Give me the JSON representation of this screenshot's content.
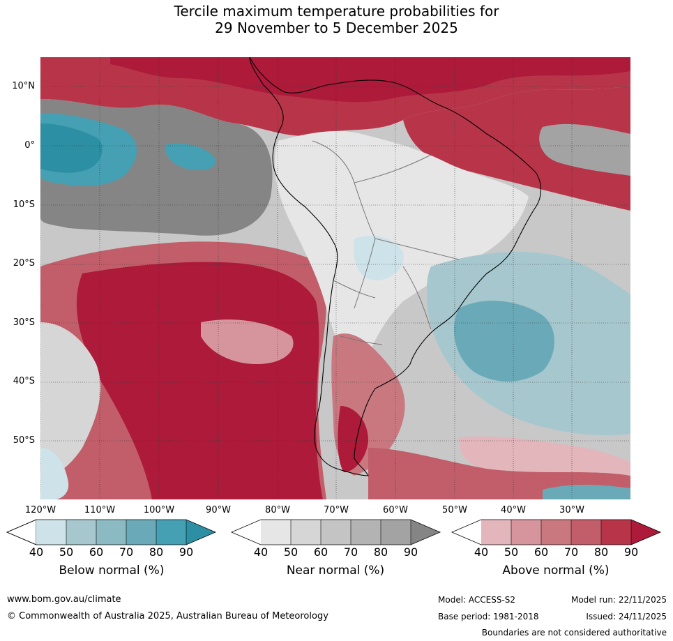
{
  "title": {
    "line1": "Tercile maximum temperature probabilities for",
    "line2": "29 November to 5 December 2025"
  },
  "axes": {
    "lat_labels": [
      "10°N",
      "0°",
      "10°S",
      "20°S",
      "30°S",
      "40°S",
      "50°S"
    ],
    "lon_labels": [
      "120°W",
      "110°W",
      "100°W",
      "90°W",
      "80°W",
      "70°W",
      "60°W",
      "50°W",
      "40°W",
      "30°W"
    ]
  },
  "legend": {
    "ticks": [
      "40",
      "50",
      "60",
      "70",
      "80",
      "90"
    ],
    "below": {
      "title": "Below normal (%)",
      "colors": [
        "#ffffff",
        "#cde3e9",
        "#a6c7ce",
        "#8cbac3",
        "#6aaab8",
        "#45a0b3",
        "#2d8fa3"
      ]
    },
    "near": {
      "title": "Near normal (%)",
      "colors": [
        "#ffffff",
        "#e6e6e6",
        "#d6d6d6",
        "#c4c4c4",
        "#b3b3b3",
        "#a3a3a3",
        "#858585"
      ]
    },
    "above": {
      "title": "Above normal (%)",
      "colors": [
        "#ffffff",
        "#e2b6bb",
        "#d6959c",
        "#c97880",
        "#c15e6a",
        "#b83549",
        "#ad1a3a"
      ]
    }
  },
  "footer": {
    "website": "www.bom.gov.au/climate",
    "copyright": "© Commonwealth of Australia 2025, Australian Bureau of Meteorology",
    "model": "Model: ACCESS-S2",
    "base_period": "Base period: 1981-2018",
    "model_run": "Model run: 22/11/2025",
    "issued": "Issued: 24/11/2025",
    "boundaries": "Boundaries are not considered authoritative"
  }
}
